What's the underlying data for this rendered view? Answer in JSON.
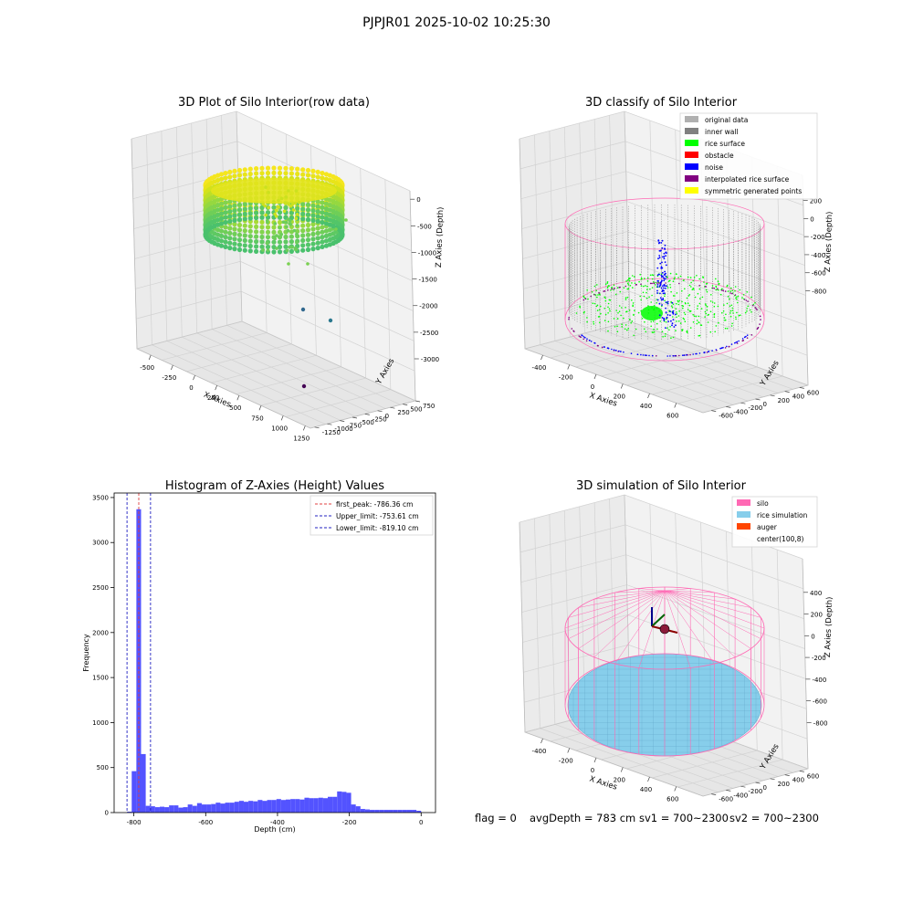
{
  "figure": {
    "suptitle": "PJPJR01 2025-10-02 10:25:30"
  },
  "status": {
    "flag": "flag = 0",
    "avg_depth": "avgDepth = 783 cm",
    "sv1": "sv1 = 700~2300",
    "sv2": "sv2 = 700~2300"
  },
  "colors": {
    "hist_bar": "#5050ff",
    "first_peak": "#e04040",
    "limits": "#2020c0",
    "silo": "#ff69b4",
    "rice_simulation": "#87ceeb",
    "auger": "#ff4500",
    "inner_wall": "#808080",
    "rice_surface": "#00ff00",
    "obstacle": "#ff0000",
    "noise": "#0000ff",
    "interpolated": "#800080",
    "symmetric": "#ffff00",
    "original": "#b0b0b0"
  },
  "chart_data": [
    {
      "type": "scatter",
      "title": "3D Plot of Silo Interior(row data)",
      "xlabel": "X Axies",
      "ylabel": "Y Axies",
      "zlabel": "Z Axies (Depth)",
      "x_ticks": [
        "-500",
        "-250",
        "0",
        "250",
        "500",
        "750",
        "1000",
        "1250"
      ],
      "y_ticks": [
        "750",
        "500",
        "250",
        "0",
        "-250",
        "-500",
        "-750",
        "-1000",
        "-1250"
      ],
      "z_ticks": [
        "0",
        "-500",
        "-1000",
        "-1500",
        "-2000",
        "-2500",
        "-3000"
      ],
      "xlim": [
        -600,
        1300
      ],
      "ylim": [
        -1300,
        800
      ],
      "zlim": [
        -3200,
        100
      ],
      "colormap": "viridis",
      "outliers": [
        {
          "x": 370,
          "y": -560,
          "z": -2600
        },
        {
          "x": 600,
          "y": -420,
          "z": -2750
        },
        {
          "x": 750,
          "y": -1050,
          "z": -3200
        }
      ]
    },
    {
      "type": "scatter",
      "title": "3D classify of Silo Interior",
      "xlabel": "X Axies",
      "ylabel": "Y Axies",
      "zlabel": "Z Axies (Depth)",
      "x_ticks": [
        "-400",
        "-200",
        "0",
        "200",
        "400",
        "600"
      ],
      "y_ticks": [
        "600",
        "400",
        "200",
        "0",
        "-200",
        "-400",
        "-600"
      ],
      "z_ticks": [
        "200",
        "0",
        "-200",
        "-400",
        "-600",
        "-800"
      ],
      "legend": [
        "original data",
        "inner wall",
        "rice surface",
        "obstacle",
        "noise",
        "interpolated rice surface",
        "symmetric generated points"
      ],
      "legend_position": "top-right"
    },
    {
      "type": "bar",
      "title": "Histogram of Z-Axies (Height) Values",
      "xlabel": "Depth (cm)",
      "ylabel": "Frequency",
      "xlim": [
        -855,
        40
      ],
      "ylim": [
        0,
        3550
      ],
      "x_ticks": [
        -800,
        -600,
        -400,
        -200,
        0
      ],
      "y_ticks": [
        0,
        500,
        1000,
        1500,
        2000,
        2500,
        3000,
        3500
      ],
      "bin_edges": [
        -819,
        -806,
        -793,
        -780,
        -767,
        -754,
        -741,
        -728,
        -715,
        -702,
        -689,
        -676,
        -663,
        -650,
        -637,
        -624,
        -611,
        -598,
        -585,
        -572,
        -559,
        -546,
        -533,
        -520,
        -507,
        -494,
        -481,
        -468,
        -455,
        -442,
        -429,
        -416,
        -403,
        -390,
        -377,
        -364,
        -351,
        -338,
        -325,
        -312,
        -299,
        -286,
        -273,
        -260,
        -247,
        -234,
        -221,
        -208,
        -195,
        -182,
        -169,
        -156,
        -143,
        -130,
        -117,
        -104,
        -91,
        -78,
        -65,
        -52,
        -39,
        -26,
        -13,
        0
      ],
      "values": [
        10,
        460,
        3370,
        650,
        75,
        70,
        60,
        65,
        60,
        80,
        80,
        55,
        60,
        90,
        75,
        105,
        90,
        90,
        95,
        110,
        100,
        110,
        110,
        120,
        130,
        120,
        130,
        125,
        140,
        130,
        140,
        140,
        150,
        140,
        145,
        150,
        150,
        145,
        165,
        160,
        160,
        165,
        160,
        175,
        175,
        235,
        230,
        220,
        90,
        70,
        40,
        35,
        30,
        30,
        30,
        30,
        30,
        30,
        30,
        30,
        30,
        30,
        20
      ],
      "lines": [
        {
          "label": "first_peak: -786.36 cm",
          "x": -786.36,
          "style": "red-dashed"
        },
        {
          "label": "Upper_limit: -753.61 cm",
          "x": -753.61,
          "style": "blue-dashed"
        },
        {
          "label": "Lower_limit: -819.10 cm",
          "x": -819.1,
          "style": "blue-dashed"
        }
      ],
      "legend_position": "top-right"
    },
    {
      "type": "scatter",
      "title": "3D simulation of Silo Interior",
      "xlabel": "X Axies",
      "ylabel": "Y Axies",
      "zlabel": "Z Axies (Depth)",
      "x_ticks": [
        "-400",
        "-200",
        "0",
        "200",
        "400",
        "600"
      ],
      "y_ticks": [
        "600",
        "400",
        "200",
        "0",
        "-200",
        "-400",
        "-600"
      ],
      "z_ticks": [
        "400",
        "200",
        "0",
        "-200",
        "-400",
        "-600",
        "-800"
      ],
      "legend": [
        "silo",
        "rice simulation",
        "auger",
        "center(100,8)"
      ],
      "legend_position": "top-right"
    }
  ]
}
